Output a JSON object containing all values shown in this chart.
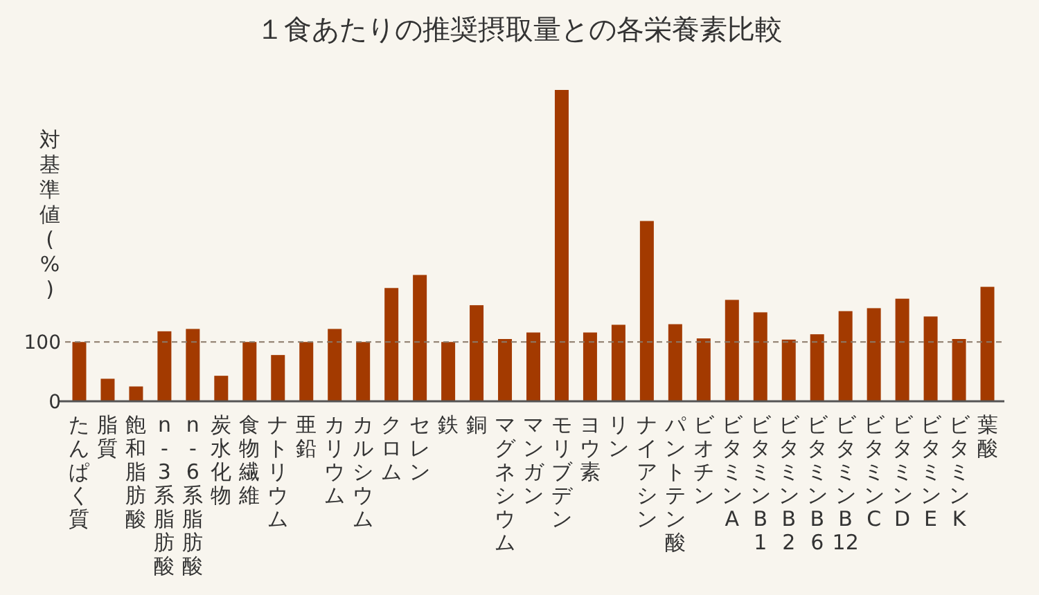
{
  "chart_data": {
    "type": "bar",
    "title": "１食あたりの推奨摂取量との各栄養素比較",
    "ylabel": "対基準値(%)",
    "categories": [
      "たんぱく質",
      "脂質",
      "飽和脂肪酸",
      "n-3系脂肪酸",
      "n-6系脂肪酸",
      "炭水化物",
      "食物繊維",
      "ナトリウム",
      "亜鉛",
      "カリウム",
      "カルシウム",
      "クロム",
      "セレン",
      "鉄",
      "銅",
      "マグネシウム",
      "マンガン",
      "モリブデン",
      "ヨウ素",
      "リン",
      "ナイアシン",
      "パントテン酸",
      "ビオチン",
      "ビタミンA",
      "ビタミンB1",
      "ビタミンB2",
      "ビタミンB6",
      "ビタミンB12",
      "ビタミンC",
      "ビタミンD",
      "ビタミンE",
      "ビタミンK",
      "葉酸"
    ],
    "values": [
      100,
      38,
      25,
      118,
      122,
      43,
      100,
      78,
      100,
      122,
      100,
      191,
      213,
      100,
      162,
      105,
      116,
      525,
      116,
      129,
      304,
      130,
      106,
      171,
      150,
      104,
      113,
      152,
      157,
      173,
      143,
      105,
      193
    ],
    "color": "#a33a00",
    "ylim": [
      0,
      525
    ],
    "yticks": [
      0,
      100
    ],
    "ref_lines": [
      {
        "axis": "y",
        "value": 100,
        "color": "#8a7a6a",
        "line_style": "dashed"
      }
    ]
  }
}
